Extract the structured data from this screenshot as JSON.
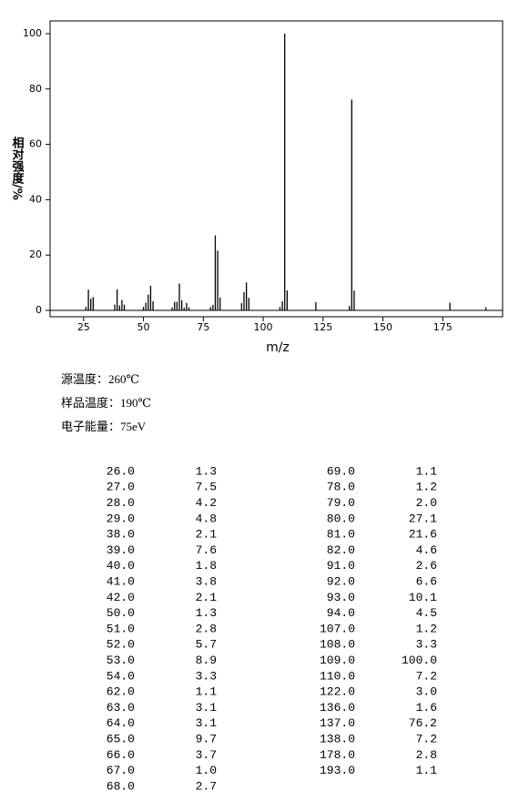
{
  "chart_data": {
    "type": "bar",
    "x_label": "m/z",
    "y_label": "相对强度/%",
    "color": "#000000",
    "x": [
      26,
      27,
      28,
      29,
      38,
      39,
      40,
      41,
      42,
      50,
      51,
      52,
      53,
      54,
      62,
      63,
      64,
      65,
      66,
      67,
      68,
      69,
      78,
      79,
      80,
      81,
      82,
      91,
      92,
      93,
      94,
      107,
      108,
      109,
      110,
      122,
      136,
      137,
      138,
      178,
      193
    ],
    "values": [
      1.3,
      7.5,
      4.2,
      4.8,
      2.1,
      7.6,
      1.8,
      3.8,
      2.1,
      1.3,
      2.8,
      5.7,
      8.9,
      3.3,
      1.1,
      3.1,
      3.1,
      9.7,
      3.7,
      1.0,
      2.7,
      1.1,
      1.2,
      2.0,
      27.1,
      21.6,
      4.6,
      2.6,
      6.6,
      10.1,
      4.5,
      1.2,
      3.3,
      100,
      7.2,
      3.0,
      1.6,
      76.2,
      7.2,
      2.8,
      1.1
    ],
    "xlim": [
      11,
      200
    ],
    "xticks": [
      25,
      50,
      75,
      100,
      125,
      150,
      175
    ],
    "ylim": [
      -2.3,
      104.6
    ],
    "yticks": [
      0,
      20,
      40,
      60,
      80,
      100
    ]
  },
  "conditions": [
    "源温度：260℃",
    "样品温度：190℃",
    "电子能量：75eV"
  ],
  "peak_table": {
    "rows": [
      [
        "26.0",
        "1.3"
      ],
      [
        "27.0",
        "7.5"
      ],
      [
        "28.0",
        "4.2"
      ],
      [
        "29.0",
        "4.8"
      ],
      [
        "38.0",
        "2.1"
      ],
      [
        "39.0",
        "7.6"
      ],
      [
        "40.0",
        "1.8"
      ],
      [
        "41.0",
        "3.8"
      ],
      [
        "42.0",
        "2.1"
      ],
      [
        "50.0",
        "1.3"
      ],
      [
        "51.0",
        "2.8"
      ],
      [
        "52.0",
        "5.7"
      ],
      [
        "53.0",
        "8.9"
      ],
      [
        "54.0",
        "3.3"
      ],
      [
        "62.0",
        "1.1"
      ],
      [
        "63.0",
        "3.1"
      ],
      [
        "64.0",
        "3.1"
      ],
      [
        "65.0",
        "9.7"
      ],
      [
        "66.0",
        "3.7"
      ],
      [
        "67.0",
        "1.0"
      ],
      [
        "68.0",
        "2.7"
      ],
      [
        "69.0",
        "1.1"
      ],
      [
        "78.0",
        "1.2"
      ],
      [
        "79.0",
        "2.0"
      ],
      [
        "80.0",
        "27.1"
      ],
      [
        "81.0",
        "21.6"
      ],
      [
        "82.0",
        "4.6"
      ],
      [
        "91.0",
        "2.6"
      ],
      [
        "92.0",
        "6.6"
      ],
      [
        "93.0",
        "10.1"
      ],
      [
        "94.0",
        "4.5"
      ],
      [
        "107.0",
        "1.2"
      ],
      [
        "108.0",
        "3.3"
      ],
      [
        "109.0",
        "100.0"
      ],
      [
        "110.0",
        "7.2"
      ],
      [
        "122.0",
        "3.0"
      ],
      [
        "136.0",
        "1.6"
      ],
      [
        "137.0",
        "76.2"
      ],
      [
        "138.0",
        "7.2"
      ],
      [
        "178.0",
        "2.8"
      ],
      [
        "193.0",
        "1.1"
      ]
    ]
  }
}
